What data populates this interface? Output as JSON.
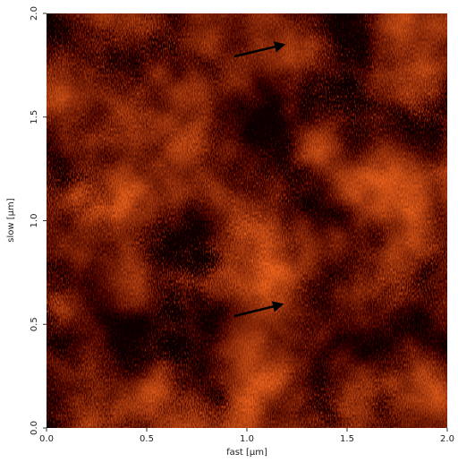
{
  "chart_data": {
    "type": "image",
    "x_label": "fast [µm]",
    "y_label": "slow [µm]",
    "xlim": [
      0,
      2
    ],
    "ylim": [
      0,
      2
    ],
    "xticks": [
      {
        "value": 0,
        "label": "0.0"
      },
      0.5,
      {
        "value": 1,
        "label": "1.0"
      },
      1.5,
      {
        "value": 2,
        "label": "2.0"
      }
    ],
    "yticks": [
      {
        "value": 0,
        "label": "0.0"
      },
      0.5,
      {
        "value": 1,
        "label": "1.0"
      },
      1.5,
      {
        "value": 2,
        "label": "2.0"
      }
    ]
  }
}
